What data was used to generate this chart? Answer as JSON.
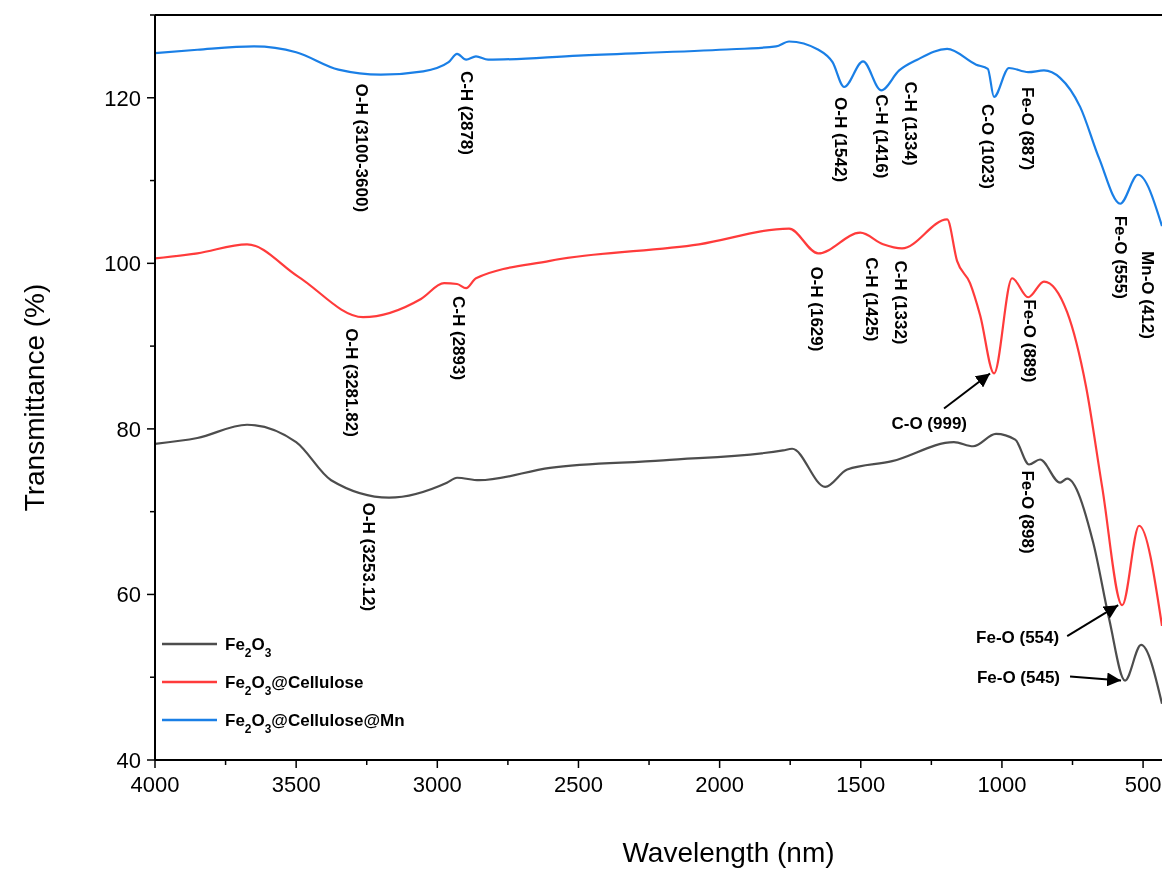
{
  "chart_data": {
    "type": "line",
    "xlabel": "Wavelength (nm)",
    "ylabel": "Transmittance (%)",
    "xlim": [
      4000,
      433
    ],
    "xticks": [
      4000,
      3500,
      3000,
      2500,
      2000,
      1500,
      1000,
      500
    ],
    "ylim": [
      40,
      130
    ],
    "yticks": [
      40,
      60,
      80,
      100,
      120
    ],
    "grid": false,
    "legend": "bottom left",
    "marker": "none",
    "line_style": "solid",
    "series": [
      {
        "name": "Fe$_{2}$O$_{3}$",
        "color": "#4d4d4d",
        "x": [
          4000,
          3850,
          3674,
          3500,
          3376,
          3171,
          2966,
          2930,
          2852,
          2601,
          2200,
          1775,
          1743,
          1626,
          1548,
          1389,
          1170,
          1102,
          1021,
          953,
          904,
          865,
          794,
          769,
          677,
          620,
          564,
          507,
          433
        ],
        "values": [
          78.2,
          78.9,
          80.5,
          78.4,
          73.8,
          71.7,
          73.5,
          74.1,
          73.8,
          75.3,
          76.2,
          77.4,
          77.6,
          73.0,
          75.1,
          76.1,
          78.4,
          77.9,
          79.4,
          78.7,
          75.7,
          76.3,
          73.5,
          74.0,
          66.3,
          57.0,
          49.6,
          53.9,
          46.8
        ]
      },
      {
        "name": "Fe$_{2}$O$_{3}$@Cellulose",
        "color": "#ff3b3b",
        "x": [
          4000,
          3850,
          3674,
          3493,
          3263,
          3058,
          2976,
          2930,
          2898,
          2863,
          2601,
          2073,
          1754,
          1651,
          1502,
          1421,
          1354,
          1194,
          1159,
          1113,
          1077,
          1028,
          964,
          907,
          851,
          769,
          702,
          645,
          574,
          514,
          433
        ],
        "values": [
          100.6,
          101.2,
          102.3,
          98.4,
          93.5,
          95.7,
          97.6,
          97.5,
          97.0,
          98.2,
          100.3,
          102.3,
          104.2,
          101.2,
          103.7,
          102.3,
          101.8,
          105.3,
          100.3,
          97.6,
          93.7,
          86.7,
          98.2,
          95.9,
          97.8,
          94.1,
          85.1,
          73.0,
          58.7,
          68.3,
          56.2
        ]
      },
      {
        "name": "Fe$_{2}$O$_{3}$@Cellulose@Mn",
        "color": "#1a7fe6",
        "x": [
          4000,
          3850,
          3650,
          3500,
          3350,
          3200,
          3050,
          2960,
          2930,
          2898,
          2863,
          2820,
          2500,
          2000,
          1800,
          1754,
          1650,
          1600,
          1559,
          1492,
          1428,
          1364,
          1300,
          1194,
          1091,
          1050,
          1028,
          975,
          907,
          851,
          794,
          723,
          656,
          581,
          518,
          433
        ],
        "values": [
          125.4,
          125.8,
          126.2,
          125.5,
          123.4,
          122.8,
          123.2,
          124.3,
          125.3,
          124.6,
          125.0,
          124.6,
          125.1,
          125.8,
          126.2,
          126.8,
          125.8,
          124.3,
          121.3,
          124.4,
          120.9,
          123.3,
          124.6,
          125.9,
          124.0,
          123.5,
          120.1,
          123.6,
          123.1,
          123.3,
          122.4,
          118.9,
          112.7,
          107.2,
          110.7,
          104.5
        ]
      }
    ],
    "annotations": [
      {
        "text": "O-H (3100-3600)",
        "x": 3200,
        "y": 122.8
      },
      {
        "text": "C-H (2878)",
        "x": 2930,
        "y": 125.3
      },
      {
        "text": "O-H (1542)",
        "x": 1559,
        "y": 121.3
      },
      {
        "text": "C-H (1416)",
        "x": 1428,
        "y": 120.9
      },
      {
        "text": "C-H (1334)",
        "x": 1364,
        "y": 123.3
      },
      {
        "text": "C-O (1023)",
        "x": 1028,
        "y": 120.1
      },
      {
        "text": "Fe-O (887)",
        "x": 907,
        "y": 123.1
      },
      {
        "text": "Fe-O (555)",
        "x": 581,
        "y": 107.2
      },
      {
        "text": "Mn-O (412)",
        "x": 433,
        "y": 104.5
      },
      {
        "text": "O-H (3281.82)",
        "x": 3263,
        "y": 93.5
      },
      {
        "text": "C-H (2893)",
        "x": 2930,
        "y": 97.5
      },
      {
        "text": "O-H (1629)",
        "x": 1651,
        "y": 101.2
      },
      {
        "text": "C-H (1425)",
        "x": 1421,
        "y": 102.3
      },
      {
        "text": "C-H (1332)",
        "x": 1354,
        "y": 101.8
      },
      {
        "text": "Fe-O (889)",
        "x": 907,
        "y": 95.9
      },
      {
        "text": "O-H (3253.12)",
        "x": 3171,
        "y": 71.7
      },
      {
        "text": "Fe-O (898)",
        "x": 904,
        "y": 75.7
      },
      {
        "text": "C-O (999)",
        "x": 1028,
        "y": 86.7
      },
      {
        "text": "Fe-O (554)",
        "x": 574,
        "y": 58.7
      },
      {
        "text": "Fe-O (545)",
        "x": 564,
        "y": 49.6
      }
    ]
  }
}
